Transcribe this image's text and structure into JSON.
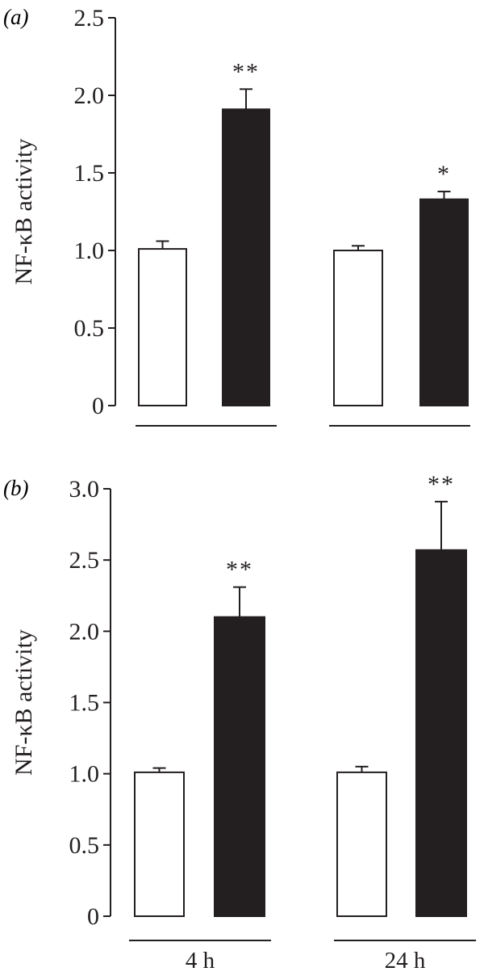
{
  "chart_data": [
    {
      "type": "bar",
      "panel_label": "(a)",
      "ylabel": "NF-κB activity",
      "ylim": [
        0,
        2.5
      ],
      "yticks": [
        "0",
        "0.5",
        "1.0",
        "1.5",
        "2.0",
        "2.5"
      ],
      "ytick_values": [
        0,
        0.5,
        1.0,
        1.5,
        2.0,
        2.5
      ],
      "groups": [
        "",
        ""
      ],
      "bar_colors": [
        "#ffffff",
        "#231f20"
      ],
      "bars": [
        {
          "group": 0,
          "fill": "white",
          "value": 1.01,
          "error": 0.05,
          "annotation": ""
        },
        {
          "group": 0,
          "fill": "black",
          "value": 1.91,
          "error": 0.13,
          "annotation": "**"
        },
        {
          "group": 1,
          "fill": "white",
          "value": 1.0,
          "error": 0.03,
          "annotation": ""
        },
        {
          "group": 1,
          "fill": "black",
          "value": 1.33,
          "error": 0.05,
          "annotation": "*"
        }
      ],
      "grid": false
    },
    {
      "type": "bar",
      "panel_label": "(b)",
      "ylabel": "NF-κB activity",
      "ylim": [
        0,
        3.0
      ],
      "yticks": [
        "0",
        "0.5",
        "1.0",
        "1.5",
        "2.0",
        "2.5",
        "3.0"
      ],
      "ytick_values": [
        0,
        0.5,
        1.0,
        1.5,
        2.0,
        2.5,
        3.0
      ],
      "groups": [
        "4 h",
        "24 h"
      ],
      "bar_colors": [
        "#ffffff",
        "#231f20"
      ],
      "bars": [
        {
          "group": 0,
          "fill": "white",
          "value": 1.01,
          "error": 0.03,
          "annotation": ""
        },
        {
          "group": 0,
          "fill": "black",
          "value": 2.1,
          "error": 0.21,
          "annotation": "**"
        },
        {
          "group": 1,
          "fill": "white",
          "value": 1.01,
          "error": 0.04,
          "annotation": ""
        },
        {
          "group": 1,
          "fill": "black",
          "value": 2.57,
          "error": 0.34,
          "annotation": "**"
        }
      ],
      "grid": false
    }
  ]
}
